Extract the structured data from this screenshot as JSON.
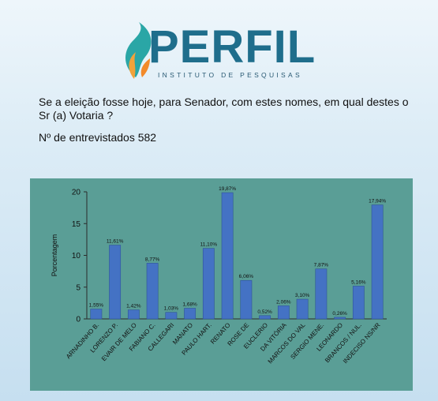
{
  "logo": {
    "wordmark": "PERFIL",
    "subtitle": "INSTITUTO DE PESQUISAS"
  },
  "question": "Se a eleição fosse hoje, para Senador, com estes nomes, em qual destes o Sr (a) Votaria ?",
  "interviewed": "Nº de entrevistados 582",
  "chart_data": {
    "type": "bar",
    "ylabel": "Porcentagem",
    "ylim": [
      0,
      20
    ],
    "yticks": [
      0,
      5,
      10,
      15,
      20
    ],
    "categories": [
      "ARNADINHO B.",
      "LORENZO P.",
      "EVAIR DE MELO",
      "FABIANO C.",
      "CALLEGARI",
      "MANATO",
      "PAULO HART.",
      "RENATO",
      "ROSE DE",
      "EUCLERIO",
      "DA VITÓRIA",
      "MARCOS DO VAL",
      "SERGIO MENE.",
      "LEONARDO",
      "BRANCOS / NUL.",
      "INDECISO NS/NR"
    ],
    "values": [
      1.55,
      11.61,
      1.42,
      8.77,
      1.03,
      1.68,
      11.1,
      19.87,
      6.06,
      0.52,
      2.06,
      3.1,
      7.87,
      0.26,
      5.16,
      17.94
    ],
    "labels": [
      "1,55%",
      "11,61%",
      "1,42%",
      "8,77%",
      "1,03%",
      "1,68%",
      "11,10%",
      "19,87%",
      "6,06%",
      "0,52%",
      "2,06%",
      "3,10%",
      "7,87%",
      "0,26%",
      "5,16%",
      "17,94%"
    ],
    "grid": false,
    "legend": "none"
  },
  "colors": {
    "bar": "#4472c4",
    "bar_edge": "#2f5597",
    "panel": "#5a9e96",
    "logo_teal": "#1f6e8c",
    "flame_orange": "#f2a23a",
    "flame_teal": "#2aa6a6"
  }
}
